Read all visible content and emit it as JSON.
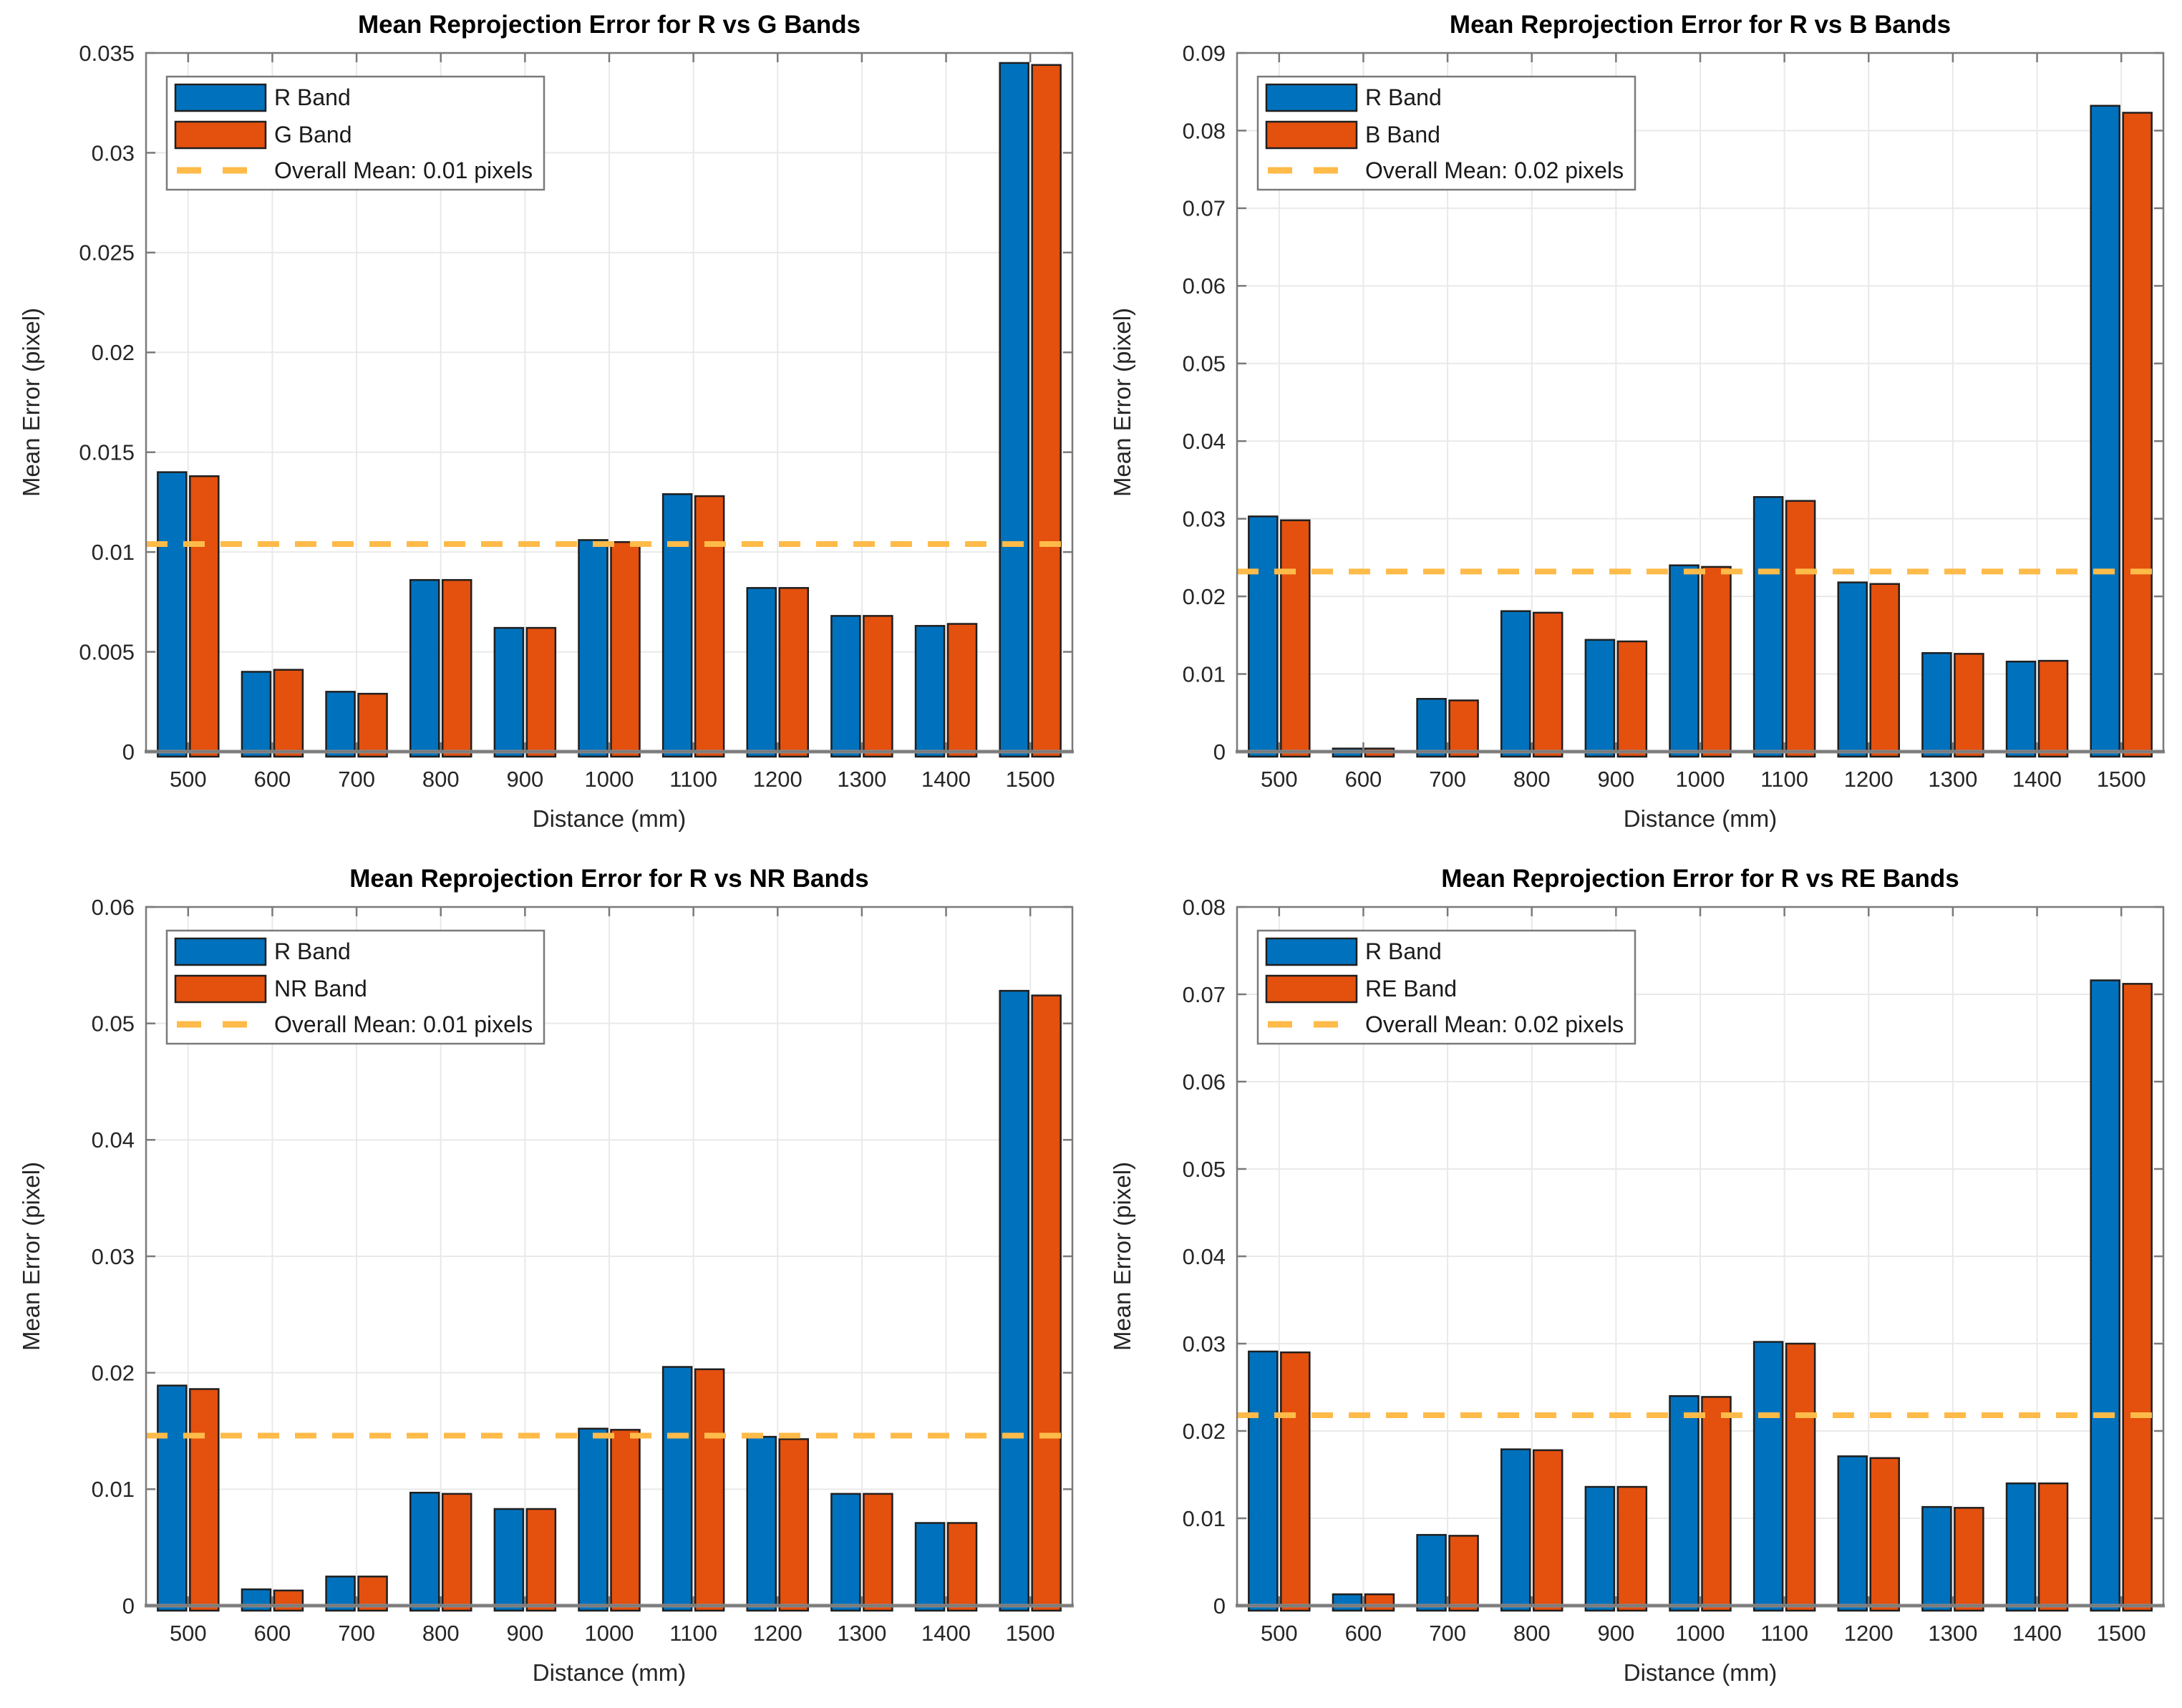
{
  "figure": {
    "background": "#ffffff",
    "grid_color": "#e9e9e9",
    "box_color": "#7a7a7a",
    "baseline_color": "#8a8a8a",
    "bar_edge_color": "#1f1f1f",
    "text_color": "#262626",
    "title_color": "#000000"
  },
  "chart_data": [
    {
      "type": "bar",
      "id": "r-vs-g",
      "title": "Mean Reprojection Error for R vs G Bands",
      "xlabel": "Distance (mm)",
      "ylabel": "Mean Error (pixel)",
      "categories": [
        "500",
        "600",
        "700",
        "800",
        "900",
        "1000",
        "1100",
        "1200",
        "1300",
        "1400",
        "1500"
      ],
      "series": [
        {
          "name": "R Band",
          "color": "#0072BD",
          "values": [
            0.014,
            0.004,
            0.003,
            0.0086,
            0.0062,
            0.0106,
            0.0129,
            0.0082,
            0.0068,
            0.0063,
            0.0345
          ]
        },
        {
          "name": "G Band",
          "color": "#E4500E",
          "values": [
            0.0138,
            0.0041,
            0.0029,
            0.0086,
            0.0062,
            0.0105,
            0.0128,
            0.0082,
            0.0068,
            0.0064,
            0.0344
          ]
        }
      ],
      "overall_mean": {
        "label": "Overall Mean: 0.01 pixels",
        "value": 0.0104,
        "color": "#FEBB49"
      },
      "ylim": [
        0,
        0.035
      ],
      "yticks": [
        "0",
        "0.005",
        "0.01",
        "0.015",
        "0.02",
        "0.025",
        "0.03",
        "0.035"
      ],
      "grid": true,
      "legend_position": "top-left"
    },
    {
      "type": "bar",
      "id": "r-vs-b",
      "title": "Mean Reprojection Error for R vs B Bands",
      "xlabel": "Distance (mm)",
      "ylabel": "Mean Error (pixel)",
      "categories": [
        "500",
        "600",
        "700",
        "800",
        "900",
        "1000",
        "1100",
        "1200",
        "1300",
        "1400",
        "1500"
      ],
      "series": [
        {
          "name": "R Band",
          "color": "#0072BD",
          "values": [
            0.0303,
            0.0004,
            0.0068,
            0.0181,
            0.0144,
            0.024,
            0.0328,
            0.0218,
            0.0127,
            0.0116,
            0.0832
          ]
        },
        {
          "name": "B Band",
          "color": "#E4500E",
          "values": [
            0.0298,
            0.0004,
            0.0066,
            0.0179,
            0.0142,
            0.0238,
            0.0323,
            0.0216,
            0.0126,
            0.0117,
            0.0823
          ]
        }
      ],
      "overall_mean": {
        "label": "Overall Mean: 0.02 pixels",
        "value": 0.0232,
        "color": "#FEBB49"
      },
      "ylim": [
        0,
        0.09
      ],
      "yticks": [
        "0",
        "0.01",
        "0.02",
        "0.03",
        "0.04",
        "0.05",
        "0.06",
        "0.07",
        "0.08",
        "0.09"
      ],
      "grid": true,
      "legend_position": "top-left"
    },
    {
      "type": "bar",
      "id": "r-vs-nr",
      "title": "Mean Reprojection Error for R vs NR Bands",
      "xlabel": "Distance (mm)",
      "ylabel": "Mean Error (pixel)",
      "categories": [
        "500",
        "600",
        "700",
        "800",
        "900",
        "1000",
        "1100",
        "1200",
        "1300",
        "1400",
        "1500"
      ],
      "series": [
        {
          "name": "R Band",
          "color": "#0072BD",
          "values": [
            0.0189,
            0.0014,
            0.0025,
            0.0097,
            0.0083,
            0.0152,
            0.0205,
            0.0145,
            0.0096,
            0.0071,
            0.0528
          ]
        },
        {
          "name": "NR Band",
          "color": "#E4500E",
          "values": [
            0.0186,
            0.0013,
            0.0025,
            0.0096,
            0.0083,
            0.0151,
            0.0203,
            0.0143,
            0.0096,
            0.0071,
            0.0524
          ]
        }
      ],
      "overall_mean": {
        "label": "Overall Mean: 0.01 pixels",
        "value": 0.0146,
        "color": "#FEBB49"
      },
      "ylim": [
        0,
        0.06
      ],
      "yticks": [
        "0",
        "0.01",
        "0.02",
        "0.03",
        "0.04",
        "0.05",
        "0.06"
      ],
      "grid": true,
      "legend_position": "top-left"
    },
    {
      "type": "bar",
      "id": "r-vs-re",
      "title": "Mean Reprojection Error for R vs RE Bands",
      "xlabel": "Distance (mm)",
      "ylabel": "Mean Error (pixel)",
      "categories": [
        "500",
        "600",
        "700",
        "800",
        "900",
        "1000",
        "1100",
        "1200",
        "1300",
        "1400",
        "1500"
      ],
      "series": [
        {
          "name": "R Band",
          "color": "#0072BD",
          "values": [
            0.0291,
            0.0013,
            0.0081,
            0.0179,
            0.0136,
            0.024,
            0.0302,
            0.0171,
            0.0113,
            0.014,
            0.0716
          ]
        },
        {
          "name": "RE Band",
          "color": "#E4500E",
          "values": [
            0.029,
            0.0013,
            0.008,
            0.0178,
            0.0136,
            0.0239,
            0.03,
            0.0169,
            0.0112,
            0.014,
            0.0712
          ]
        }
      ],
      "overall_mean": {
        "label": "Overall Mean: 0.02 pixels",
        "value": 0.0218,
        "color": "#FEBB49"
      },
      "ylim": [
        0,
        0.08
      ],
      "yticks": [
        "0",
        "0.01",
        "0.02",
        "0.03",
        "0.04",
        "0.05",
        "0.06",
        "0.07",
        "0.08"
      ],
      "grid": true,
      "legend_position": "top-left"
    }
  ]
}
